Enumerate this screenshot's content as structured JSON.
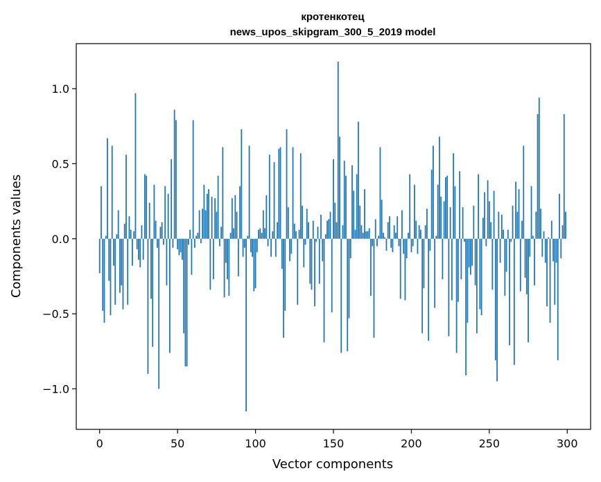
{
  "chart_data": {
    "type": "bar",
    "title": "кротенкотец",
    "subtitle": "news_upos_skipgram_300_5_2019 model",
    "xlabel": "Vector components",
    "ylabel": "Components values",
    "xlim": [
      -15,
      315
    ],
    "ylim": [
      -1.27,
      1.3
    ],
    "xticks": [
      0,
      50,
      100,
      150,
      200,
      250,
      300
    ],
    "yticks": [
      -1.0,
      -0.5,
      0.0,
      0.5,
      1.0
    ],
    "ytick_labels": [
      "−1.0",
      "−0.5",
      "0.0",
      "0.5",
      "1.0"
    ],
    "bar_color": "#1f77b4",
    "grid": false,
    "values": [
      -0.23,
      0.35,
      -0.48,
      -0.56,
      0.02,
      0.67,
      -0.28,
      -0.51,
      0.62,
      -0.18,
      -0.44,
      0.03,
      0.19,
      -0.36,
      -0.31,
      -0.47,
      0.1,
      0.56,
      -0.44,
      0.15,
      0.06,
      -0.18,
      0.05,
      0.97,
      -0.07,
      -0.14,
      -0.19,
      0.09,
      -0.14,
      0.43,
      0.42,
      -0.9,
      0.24,
      -0.4,
      -0.72,
      0.36,
      0.12,
      -0.06,
      -1.0,
      0.08,
      0.11,
      -0.04,
      0.35,
      -0.31,
      0.3,
      -0.76,
      0.53,
      -0.06,
      0.86,
      0.79,
      -0.07,
      -0.11,
      -0.09,
      -0.14,
      -0.63,
      -0.85,
      -0.85,
      -0.04,
      0.06,
      -0.24,
      0.79,
      -0.06,
      0.02,
      0.04,
      0.19,
      -0.03,
      0.2,
      0.36,
      0.19,
      0.3,
      0.33,
      -0.34,
      0.28,
      -0.27,
      0.27,
      0.18,
      0.42,
      -0.05,
      0.08,
      0.61,
      -0.39,
      -0.16,
      -0.27,
      -0.38,
      0.04,
      0.27,
      0.07,
      0.29,
      0.18,
      -0.25,
      0.35,
      0.73,
      -0.12,
      -0.06,
      -1.15,
      0.02,
      0.62,
      -0.09,
      -0.12,
      -0.35,
      -0.33,
      -0.09,
      0.06,
      0.07,
      0.04,
      0.19,
      0.07,
      0.29,
      -0.05,
      0.56,
      -0.12,
      0.05,
      0.51,
      -0.12,
      0.11,
      0.6,
      0.61,
      -0.2,
      -0.66,
      -0.48,
      0.73,
      0.21,
      -0.15,
      -0.1,
      0.61,
      0.1,
      0.05,
      -0.44,
      0.06,
      0.57,
      0.22,
      -0.19,
      -0.04,
      0.2,
      0.11,
      -0.3,
      -0.34,
      0.12,
      -0.45,
      -0.02,
      0.08,
      -0.3,
      0.16,
      -0.15,
      -0.69,
      0.03,
      0.12,
      0.13,
      0.18,
      -0.49,
      0.53,
      0.24,
      0.11,
      1.18,
      0.68,
      -0.76,
      0.09,
      0.52,
      0.42,
      -0.75,
      -0.53,
      -0.13,
      0.49,
      0.32,
      0.06,
      0.43,
      0.78,
      0.22,
      0.09,
      0.04,
      0.33,
      0.05,
      0.05,
      0.07,
      -0.38,
      -0.05,
      -0.66,
      0.13,
      -0.05,
      0.02,
      0.61,
      0.26,
      0.04,
      0.01,
      -0.08,
      0.11,
      0.15,
      -0.06,
      -0.09,
      0.09,
      0.04,
      0.15,
      -0.05,
      -0.4,
      0.19,
      -0.1,
      -0.41,
      -0.13,
      0.04,
      0.43,
      -0.09,
      -0.05,
      0.36,
      0.12,
      -0.1,
      0.09,
      0.06,
      -0.63,
      -0.33,
      0.09,
      0.2,
      -0.68,
      -0.08,
      0.46,
      0.62,
      -0.46,
      0.02,
      0.36,
      0.68,
      0.28,
      -0.27,
      0.25,
      0.41,
      0.42,
      -0.65,
      0.21,
      -0.41,
      0.57,
      0.35,
      -0.76,
      -0.42,
      0.45,
      -0.27,
      0.21,
      -0.02,
      -0.91,
      -0.56,
      -0.19,
      -0.24,
      -0.18,
      0.22,
      -0.31,
      -0.63,
      0.43,
      -0.47,
      -0.51,
      0.14,
      0.31,
      -0.05,
      0.39,
      0.25,
      0.11,
      -0.34,
      0.32,
      -0.81,
      -0.95,
      0.18,
      -0.16,
      0.16,
      0.06,
      -0.38,
      -0.22,
      0.06,
      -0.71,
      -0.02,
      0.22,
      -0.84,
      0.38,
      0.18,
      0.33,
      -0.35,
      0.12,
      0.62,
      -0.26,
      -0.37,
      -0.69,
      -0.12,
      0.35,
      0.02,
      -0.31,
      0.18,
      0.83,
      0.94,
      0.2,
      -0.12,
      0.05,
      -0.16,
      -0.45,
      0.01,
      -0.56,
      0.12,
      -0.15,
      -0.44,
      -0.16,
      -0.81,
      0.3,
      -0.13,
      0.09,
      0.83,
      0.18
    ]
  }
}
